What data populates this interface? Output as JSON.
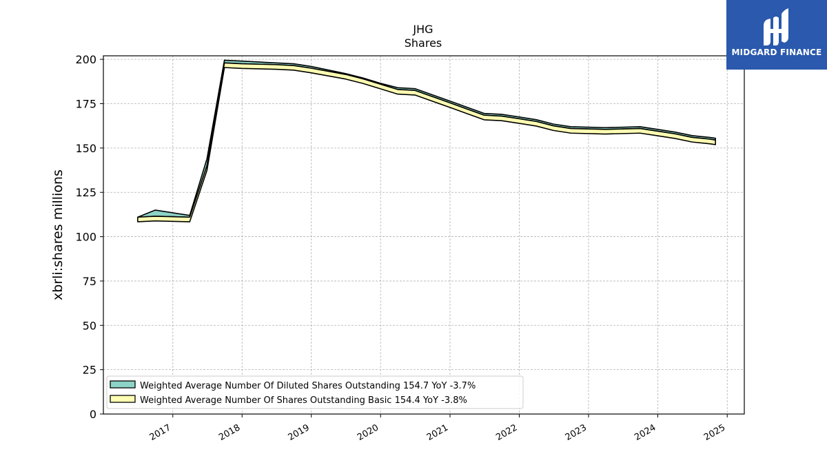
{
  "chart_data": {
    "type": "area",
    "title": "JHG",
    "subtitle": "Shares",
    "ylabel": "xbrli:shares millions",
    "ylim": [
      0,
      202
    ],
    "yticks": [
      0,
      25,
      50,
      75,
      100,
      125,
      150,
      175,
      200
    ],
    "xticks": [
      "2017",
      "2018",
      "2019",
      "2020",
      "2021",
      "2022",
      "2023",
      "2024",
      "2025"
    ],
    "grid": true,
    "legend_position": "lower-left",
    "series": [
      {
        "name": "Weighted Average Number Of Diluted Shares Outstanding",
        "legend_label": "Weighted Average Number Of Diluted Shares Outstanding  154.7 YoY -3.7%",
        "color": "#8dd3c7",
        "points": [
          [
            "2016-06-30",
            111
          ],
          [
            "2016-09-30",
            115
          ],
          [
            "2017-03-31",
            112
          ],
          [
            "2017-06-30",
            144
          ],
          [
            "2017-09-30",
            199.5
          ],
          [
            "2017-12-31",
            199
          ],
          [
            "2018-06-30",
            198
          ],
          [
            "2018-09-30",
            197.5
          ],
          [
            "2018-12-31",
            196
          ],
          [
            "2019-06-30",
            192
          ],
          [
            "2019-09-30",
            189.5
          ],
          [
            "2019-12-31",
            186.5
          ],
          [
            "2020-03-31",
            184
          ],
          [
            "2020-06-30",
            183.5
          ],
          [
            "2020-09-30",
            180
          ],
          [
            "2020-12-31",
            176.5
          ],
          [
            "2021-03-31",
            173
          ],
          [
            "2021-06-30",
            169.5
          ],
          [
            "2021-09-30",
            169
          ],
          [
            "2021-12-31",
            167.5
          ],
          [
            "2022-03-31",
            166
          ],
          [
            "2022-06-30",
            163.5
          ],
          [
            "2022-09-30",
            162
          ],
          [
            "2023-03-31",
            161.5
          ],
          [
            "2023-09-30",
            162
          ],
          [
            "2023-12-31",
            160.5
          ],
          [
            "2024-03-31",
            159
          ],
          [
            "2024-06-30",
            157
          ],
          [
            "2024-09-30",
            156
          ],
          [
            "2024-10-31",
            155.5
          ]
        ]
      },
      {
        "name": "Weighted Average Number Of Shares Outstanding Basic",
        "legend_label": "Weighted Average Number Of Shares Outstanding Basic  154.4 YoY -3.8%",
        "color": "#ffffb3",
        "points": [
          [
            "2016-06-30",
            111
          ],
          [
            "2016-09-30",
            111.5
          ],
          [
            "2017-03-31",
            111
          ],
          [
            "2017-06-30",
            140
          ],
          [
            "2017-09-30",
            198
          ],
          [
            "2017-12-31",
            197.5
          ],
          [
            "2018-06-30",
            197
          ],
          [
            "2018-09-30",
            196.5
          ],
          [
            "2018-12-31",
            195
          ],
          [
            "2019-06-30",
            191.5
          ],
          [
            "2019-09-30",
            189
          ],
          [
            "2019-12-31",
            186
          ],
          [
            "2020-03-31",
            183
          ],
          [
            "2020-06-30",
            182.5
          ],
          [
            "2020-09-30",
            179
          ],
          [
            "2020-12-31",
            175.5
          ],
          [
            "2021-03-31",
            172
          ],
          [
            "2021-06-30",
            168.5
          ],
          [
            "2021-09-30",
            168
          ],
          [
            "2021-12-31",
            166.5
          ],
          [
            "2022-03-31",
            165
          ],
          [
            "2022-06-30",
            162.5
          ],
          [
            "2022-09-30",
            161
          ],
          [
            "2023-03-31",
            160.5
          ],
          [
            "2023-09-30",
            161
          ],
          [
            "2023-12-31",
            159.5
          ],
          [
            "2024-03-31",
            158
          ],
          [
            "2024-06-30",
            156
          ],
          [
            "2024-09-30",
            155
          ],
          [
            "2024-10-31",
            154.5
          ]
        ]
      }
    ]
  },
  "logo": {
    "text": "MIDGARD FINANCE",
    "background": "#2a59ad"
  }
}
